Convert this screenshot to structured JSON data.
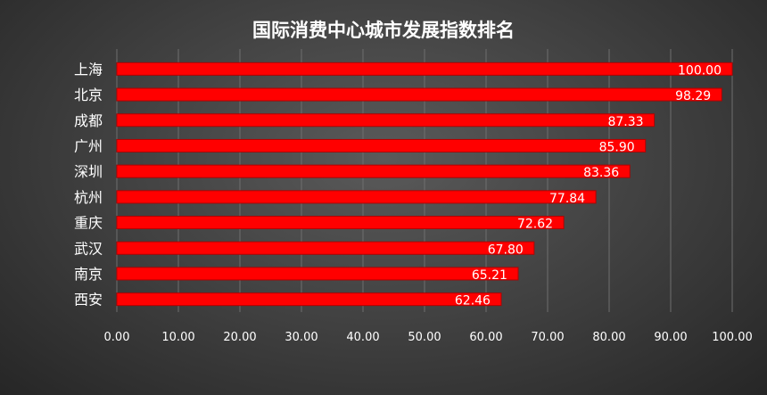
{
  "chart_data": {
    "type": "bar",
    "orientation": "horizontal",
    "title": "国际消费中心城市发展指数排名",
    "categories": [
      "上海",
      "北京",
      "成都",
      "广州",
      "深圳",
      "杭州",
      "重庆",
      "武汉",
      "南京",
      "西安"
    ],
    "values": [
      100.0,
      98.29,
      87.33,
      85.9,
      83.36,
      77.84,
      72.62,
      67.8,
      65.21,
      62.46
    ],
    "data_labels": [
      "100.00",
      "98.29",
      "87.33",
      "85.90",
      "83.36",
      "77.84",
      "72.62",
      "67.80",
      "65.21",
      "62.46"
    ],
    "x_ticks": [
      "0.00",
      "10.00",
      "20.00",
      "30.00",
      "40.00",
      "50.00",
      "60.00",
      "70.00",
      "80.00",
      "90.00",
      "100.00"
    ],
    "xlim": [
      0,
      100
    ],
    "xlabel": "",
    "ylabel": "",
    "grid": true,
    "bar_color": "#ff0000",
    "bar_edge_color": "#b00000"
  }
}
